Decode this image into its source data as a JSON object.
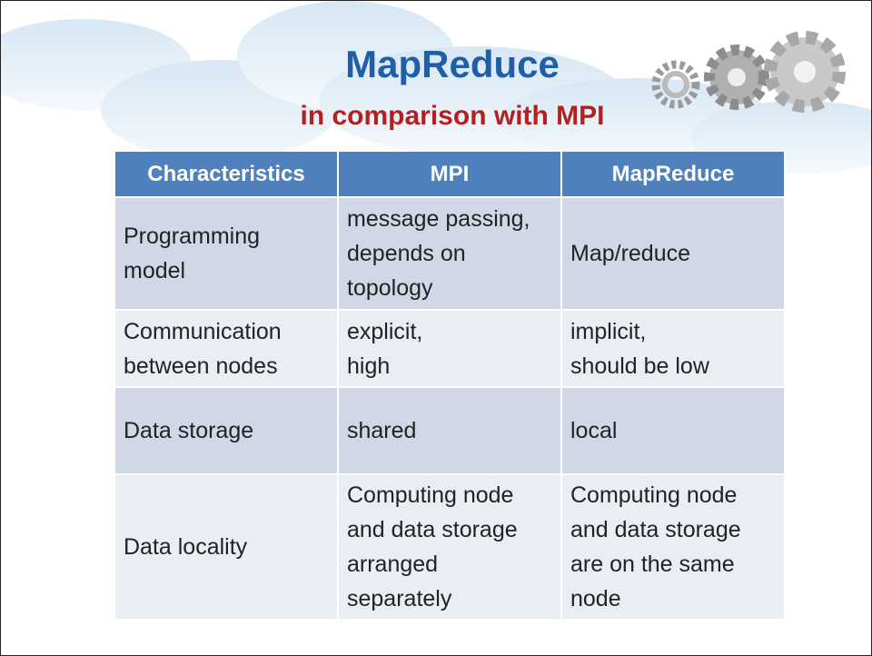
{
  "header": {
    "title": "MapReduce",
    "subtitle": "in comparison with MPI"
  },
  "table": {
    "headers": [
      "Characteristics",
      "MPI",
      "MapReduce"
    ],
    "rows": [
      [
        [
          "Programming",
          "model"
        ],
        [
          "message passing,",
          "depends on",
          "topology"
        ],
        [
          "Map/reduce"
        ]
      ],
      [
        [
          "Communication",
          "between nodes"
        ],
        [
          "explicit,",
          "high"
        ],
        [
          "implicit,",
          "should be low"
        ]
      ],
      [
        [
          "Data storage"
        ],
        [
          "shared"
        ],
        [
          "local"
        ]
      ],
      [
        [
          "Data locality"
        ],
        [
          "Computing node",
          "and data storage",
          "arranged",
          "separately"
        ],
        [
          "Computing node",
          "and data storage",
          "are on the same",
          "node"
        ]
      ]
    ]
  }
}
